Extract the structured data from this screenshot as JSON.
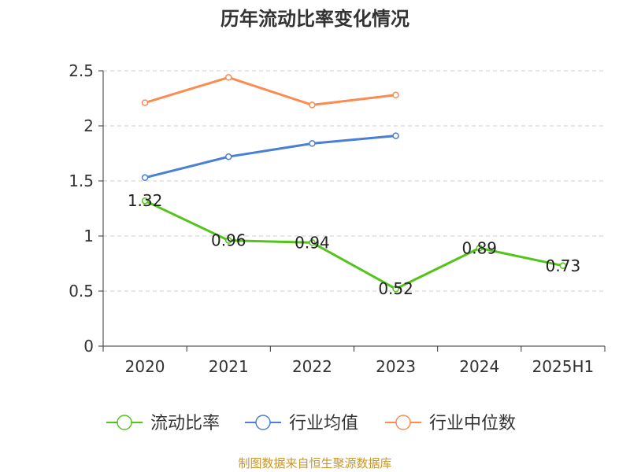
{
  "chart_data": {
    "type": "line",
    "title": "历年流动比率变化情况",
    "categories": [
      "2020",
      "2021",
      "2022",
      "2023",
      "2024",
      "2025H1"
    ],
    "ylim": [
      0,
      2.5
    ],
    "yticks": [
      "0",
      "0.5",
      "1",
      "1.5",
      "2",
      "2.5"
    ],
    "grid": true,
    "legend_position": "bottom",
    "series": [
      {
        "name": "流动比率",
        "color": "#52c41a",
        "values": [
          1.32,
          0.96,
          0.94,
          0.52,
          0.89,
          0.73
        ],
        "data_labels": [
          "1.32",
          "0.96",
          "0.94",
          "0.52",
          "0.89",
          "0.73"
        ]
      },
      {
        "name": "行业均值",
        "color": "#4a7fd4",
        "values": [
          1.53,
          1.72,
          1.84,
          1.91,
          null,
          null
        ]
      },
      {
        "name": "行业中位数",
        "color": "#fa8c50",
        "values": [
          2.21,
          2.44,
          2.19,
          2.28,
          null,
          null
        ]
      }
    ]
  },
  "footer": {
    "source": "制图数据来自恒生聚源数据库"
  }
}
